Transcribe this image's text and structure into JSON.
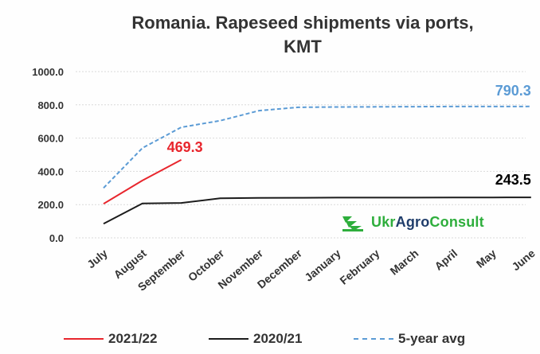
{
  "chart_data": {
    "type": "line",
    "title": "Romania. Rapeseed shipments via ports, KMT",
    "title_lines": [
      "Romania. Rapeseed shipments via ports,",
      "KMT"
    ],
    "categories": [
      "July",
      "August",
      "September",
      "October",
      "November",
      "December",
      "January",
      "February",
      "March",
      "April",
      "May",
      "June"
    ],
    "y_ticks": [
      "1000.0",
      "800.0",
      "600.0",
      "400.0",
      "200.0",
      "0.0"
    ],
    "ylim": [
      0,
      1000
    ],
    "grid": true,
    "legend_position": "bottom",
    "series": [
      {
        "name": "2021/22",
        "color": "#e8262d",
        "style": "solid",
        "values": [
          205,
          345,
          469.3,
          null,
          null,
          null,
          null,
          null,
          null,
          null,
          null,
          null
        ],
        "end_label": "469.3"
      },
      {
        "name": "2020/21",
        "color": "#1c1c1c",
        "style": "solid",
        "values": [
          85,
          207,
          210,
          238,
          240,
          241,
          242,
          242,
          242,
          243,
          243,
          243.5
        ],
        "end_label": "243.5"
      },
      {
        "name": "5-year avg",
        "color": "#5b9bd5",
        "style": "dashed",
        "values": [
          300,
          540,
          665,
          705,
          765,
          785,
          787,
          788,
          789,
          790,
          790,
          790.3
        ],
        "end_label": "790.3"
      }
    ]
  },
  "watermark": {
    "brand_part1": "Ukr",
    "brand_part2": "Agro",
    "brand_part3": "Consult",
    "color_green": "#2eae3c",
    "color_dark": "#1f3d6b"
  }
}
